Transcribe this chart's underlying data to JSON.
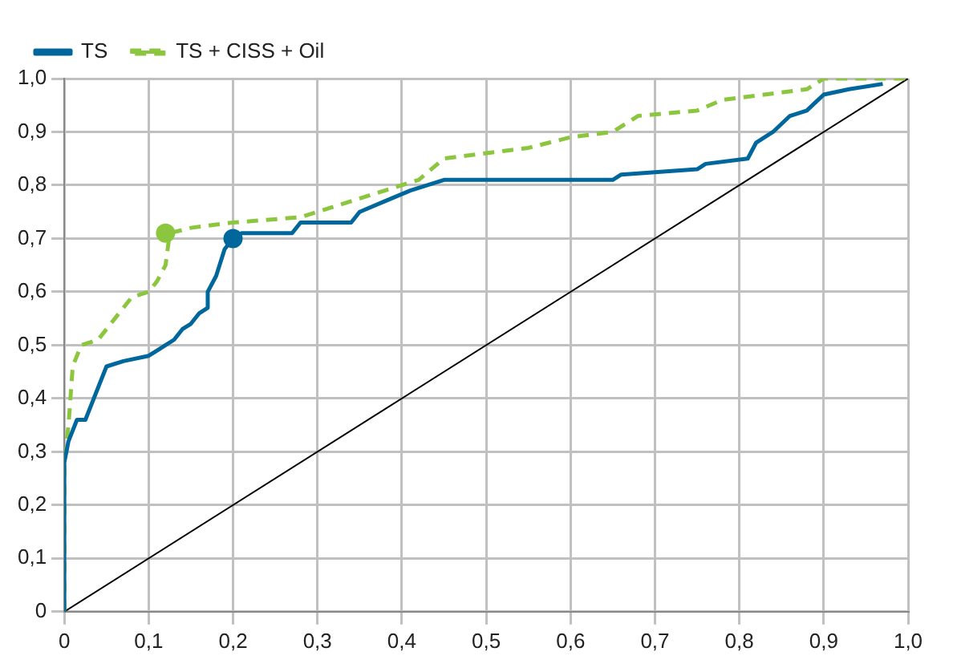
{
  "chart_data": {
    "type": "line",
    "xlim": [
      0,
      1
    ],
    "ylim": [
      0,
      1
    ],
    "xticks": [
      0,
      {
        "value": 0.1,
        "label": "0,1"
      },
      {
        "value": 0.2,
        "label": "0,2"
      },
      {
        "value": 0.3,
        "label": "0,3"
      },
      {
        "value": 0.4,
        "label": "0,4"
      },
      {
        "value": 0.5,
        "label": "0,5"
      },
      {
        "value": 0.6,
        "label": "0,6"
      },
      {
        "value": 0.7,
        "label": "0,7"
      },
      {
        "value": 0.8,
        "label": "0,8"
      },
      {
        "value": 0.9,
        "label": "0,9"
      },
      {
        "value": 1,
        "label": "1,0"
      }
    ],
    "yticks": [
      0,
      {
        "value": 0.1,
        "label": "0,1"
      },
      {
        "value": 0.2,
        "label": "0,2"
      },
      {
        "value": 0.3,
        "label": "0,3"
      },
      {
        "value": 0.4,
        "label": "0,4"
      },
      {
        "value": 0.5,
        "label": "0,5"
      },
      {
        "value": 0.6,
        "label": "0,6"
      },
      {
        "value": 0.7,
        "label": "0,7"
      },
      {
        "value": 0.8,
        "label": "0,8"
      },
      {
        "value": 0.9,
        "label": "0,9"
      },
      {
        "value": 1,
        "label": "1,0"
      }
    ],
    "grid": true,
    "legend": "top left",
    "marker": "none",
    "series": [
      {
        "name": "TS",
        "color": "#00679d",
        "line_style": "solid",
        "x": [
          0,
          0,
          0.005,
          0.015,
          0.025,
          0.05,
          0.07,
          0.1,
          0.11,
          0.12,
          0.13,
          0.14,
          0.15,
          0.16,
          0.17,
          0.17,
          0.18,
          0.19,
          0.2,
          0.21,
          0.27,
          0.28,
          0.34,
          0.35,
          0.38,
          0.41,
          0.45,
          0.65,
          0.66,
          0.75,
          0.76,
          0.81,
          0.82,
          0.84,
          0.86,
          0.88,
          0.9,
          0.93,
          0.97
        ],
        "values": [
          0,
          0.28,
          0.32,
          0.36,
          0.36,
          0.46,
          0.47,
          0.48,
          0.49,
          0.5,
          0.51,
          0.53,
          0.54,
          0.56,
          0.57,
          0.6,
          0.63,
          0.68,
          0.7,
          0.71,
          0.71,
          0.73,
          0.73,
          0.75,
          0.77,
          0.79,
          0.81,
          0.81,
          0.82,
          0.83,
          0.84,
          0.85,
          0.88,
          0.9,
          0.93,
          0.94,
          0.97,
          0.98,
          0.99
        ]
      },
      {
        "name": "TS + CISS + Oil",
        "color": "#8cc63f",
        "line_style": "dashed",
        "x": [
          0,
          0,
          0.005,
          0.01,
          0.02,
          0.04,
          0.06,
          0.08,
          0.1,
          0.11,
          0.12,
          0.125,
          0.15,
          0.2,
          0.28,
          0.3,
          0.34,
          0.38,
          0.42,
          0.45,
          0.55,
          0.6,
          0.65,
          0.68,
          0.75,
          0.78,
          0.88,
          0.9,
          1
        ],
        "values": [
          0,
          0.28,
          0.35,
          0.46,
          0.5,
          0.51,
          0.55,
          0.59,
          0.6,
          0.62,
          0.65,
          0.71,
          0.72,
          0.73,
          0.74,
          0.75,
          0.77,
          0.79,
          0.81,
          0.85,
          0.87,
          0.89,
          0.9,
          0.93,
          0.94,
          0.96,
          0.98,
          1,
          1
        ]
      },
      {
        "color": "#000000",
        "line_style": "solid",
        "x": [
          0,
          1
        ],
        "values": [
          0,
          1
        ]
      },
      {
        "color": "#8cc63f",
        "type": "scatter",
        "marker": "circle",
        "x": [
          0.12
        ],
        "values": [
          0.71
        ]
      },
      {
        "color": "#00679d",
        "type": "scatter",
        "marker": "circle",
        "x": [
          0.2
        ],
        "values": [
          0.7
        ]
      }
    ]
  }
}
